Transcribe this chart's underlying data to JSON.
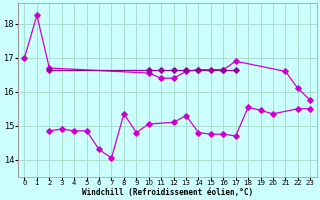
{
  "bg_color": "#ccffff",
  "grid_color": "#aaddcc",
  "line_color1": "#990099",
  "line_color2": "#cc00cc",
  "xlabel": "Windchill (Refroidissement éolien,°C)",
  "xlim": [
    -0.5,
    23.5
  ],
  "ylim": [
    13.5,
    18.6
  ],
  "yticks": [
    14,
    15,
    16,
    17,
    18
  ],
  "xticks": [
    0,
    1,
    2,
    3,
    4,
    5,
    6,
    7,
    8,
    9,
    10,
    11,
    12,
    13,
    14,
    15,
    16,
    17,
    18,
    19,
    20,
    21,
    22,
    23
  ],
  "line1_x": [
    0,
    1,
    2,
    10,
    11,
    12,
    13,
    14,
    16,
    17,
    21,
    22,
    23
  ],
  "line1_y": [
    17.0,
    18.25,
    16.7,
    16.55,
    16.4,
    16.4,
    16.6,
    16.65,
    16.65,
    16.9,
    16.6,
    16.1,
    15.75
  ],
  "line2_x": [
    2,
    10,
    11,
    12,
    13,
    14,
    15,
    16,
    17
  ],
  "line2_y": [
    16.65,
    16.65,
    16.65,
    16.65,
    16.65,
    16.65,
    16.65,
    16.65,
    16.65
  ],
  "line3_x": [
    2,
    3,
    4,
    5,
    6,
    7,
    8,
    9,
    10,
    12,
    13,
    14,
    15,
    16,
    17,
    18,
    19,
    20,
    22,
    23
  ],
  "line3_y": [
    14.85,
    14.9,
    14.85,
    14.85,
    14.3,
    14.05,
    15.35,
    14.8,
    15.05,
    15.1,
    15.3,
    14.8,
    14.75,
    14.75,
    14.7,
    15.55,
    15.45,
    15.35,
    15.5,
    15.5
  ]
}
